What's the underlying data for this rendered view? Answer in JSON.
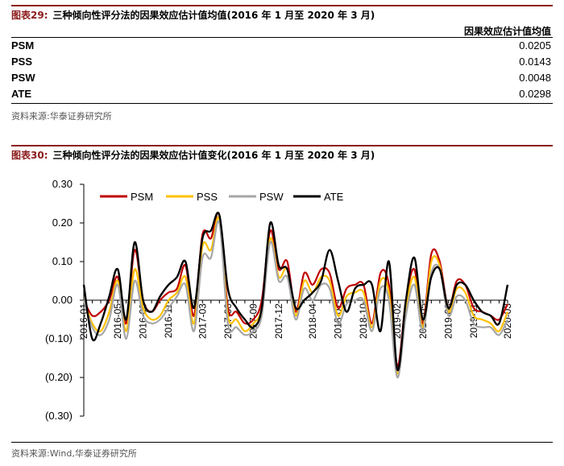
{
  "table": {
    "num": "图表29:",
    "title": "三种倾向性评分法的因果效应估计值均值(2016 年 1 月至 2020 年 3 月)",
    "column_header": "因果效应估计值均值",
    "rows": [
      {
        "label": "PSM",
        "value": "0.0205"
      },
      {
        "label": "PSS",
        "value": "0.0143"
      },
      {
        "label": "PSW",
        "value": "0.0048"
      },
      {
        "label": "ATE",
        "value": "0.0298"
      }
    ],
    "source": "资料来源:华泰证券研究所"
  },
  "chart": {
    "num": "图表30:",
    "title": "三种倾向性评分法的因果效应估计值变化(2016 年 1 月至 2020 年 3 月)",
    "source": "资料来源:Wind,华泰证券研究所"
  },
  "chart_data": {
    "type": "line",
    "title": "三种倾向性评分法的因果效应估计值变化(2016 年 1 月至 2020 年 3 月)",
    "x": [
      "2016-01",
      "2016-02",
      "2016-03",
      "2016-04",
      "2016-05",
      "2016-06",
      "2016-07",
      "2016-08",
      "2016-09",
      "2016-10",
      "2016-11",
      "2016-12",
      "2017-01",
      "2017-02",
      "2017-03",
      "2017-04",
      "2017-05",
      "2017-06",
      "2017-07",
      "2017-08",
      "2017-09",
      "2017-10",
      "2017-11",
      "2017-12",
      "2018-01",
      "2018-02",
      "2018-03",
      "2018-04",
      "2018-05",
      "2018-06",
      "2018-07",
      "2018-08",
      "2018-09",
      "2018-10",
      "2018-11",
      "2018-12",
      "2019-01",
      "2019-02",
      "2019-03",
      "2019-04",
      "2019-05",
      "2019-06",
      "2019-07",
      "2019-08",
      "2019-09",
      "2019-10",
      "2019-11",
      "2019-12",
      "2020-01",
      "2020-02",
      "2020-03"
    ],
    "x_tick_labels": [
      "2016-01",
      "2016-05",
      "2016-08",
      "2016-11",
      "2017-03",
      "2017-06",
      "2017-09",
      "2017-12",
      "2018-04",
      "2018-07",
      "2018-10",
      "2019-02",
      "2019-05",
      "2019-08",
      "2019-11",
      "2020-03"
    ],
    "x_tick_indices": [
      0,
      4,
      7,
      10,
      14,
      17,
      20,
      23,
      27,
      30,
      33,
      37,
      40,
      43,
      46,
      50
    ],
    "y_tick_labels": [
      "0.30",
      "0.20",
      "0.10",
      "0.00",
      "(0.10)",
      "(0.20)",
      "(0.30)"
    ],
    "y_tick_values": [
      0.3,
      0.2,
      0.1,
      0.0,
      -0.1,
      -0.2,
      -0.3
    ],
    "ylim": [
      -0.3,
      0.3
    ],
    "grid": false,
    "legend_position": "top-left",
    "series": [
      {
        "name": "PSM",
        "color": "#c00000",
        "width": 2.2,
        "values": [
          0.0,
          -0.04,
          -0.03,
          0.0,
          0.06,
          -0.06,
          0.13,
          0.0,
          -0.03,
          0.0,
          0.02,
          0.03,
          0.09,
          -0.04,
          0.17,
          0.16,
          0.22,
          -0.02,
          -0.03,
          -0.06,
          -0.05,
          0.0,
          0.18,
          0.08,
          0.1,
          -0.03,
          0.07,
          0.04,
          0.08,
          0.07,
          -0.02,
          0.03,
          0.04,
          0.04,
          -0.06,
          0.07,
          0.04,
          -0.17,
          0.0,
          0.08,
          -0.06,
          0.12,
          0.1,
          -0.02,
          0.05,
          0.04,
          -0.02,
          -0.03,
          -0.04,
          -0.05,
          -0.01
        ]
      },
      {
        "name": "PSS",
        "color": "#ffc000",
        "width": 2.2,
        "values": [
          0.0,
          -0.06,
          -0.08,
          -0.03,
          0.05,
          -0.08,
          0.08,
          -0.02,
          -0.05,
          -0.04,
          0.0,
          0.02,
          0.06,
          -0.06,
          0.14,
          0.13,
          0.21,
          -0.04,
          -0.05,
          -0.08,
          -0.06,
          -0.02,
          0.16,
          0.06,
          0.08,
          -0.04,
          0.05,
          0.02,
          0.06,
          0.05,
          -0.04,
          0.01,
          0.02,
          0.02,
          -0.07,
          0.05,
          0.02,
          -0.19,
          -0.02,
          0.06,
          -0.07,
          0.1,
          0.09,
          -0.03,
          0.03,
          0.02,
          -0.04,
          -0.05,
          -0.06,
          -0.08,
          -0.03
        ]
      },
      {
        "name": "PSW",
        "color": "#a6a6a6",
        "width": 2.2,
        "values": [
          0.0,
          -0.07,
          -0.09,
          -0.05,
          0.04,
          -0.1,
          0.05,
          -0.04,
          -0.06,
          -0.05,
          -0.02,
          0.01,
          0.04,
          -0.08,
          0.11,
          0.11,
          0.2,
          -0.06,
          -0.07,
          -0.09,
          -0.08,
          -0.04,
          0.15,
          0.05,
          0.06,
          -0.05,
          0.03,
          0.0,
          0.04,
          0.03,
          -0.06,
          -0.01,
          0.0,
          0.0,
          -0.08,
          0.03,
          0.0,
          -0.2,
          -0.04,
          0.04,
          -0.08,
          0.07,
          0.08,
          -0.04,
          0.01,
          0.0,
          -0.06,
          -0.07,
          -0.07,
          -0.09,
          -0.05
        ]
      },
      {
        "name": "ATE",
        "color": "#000000",
        "width": 2.4,
        "values": [
          0.04,
          -0.1,
          -0.06,
          0.01,
          0.08,
          -0.05,
          0.15,
          0.0,
          -0.03,
          0.01,
          0.04,
          0.06,
          0.1,
          -0.02,
          0.16,
          0.18,
          0.22,
          0.03,
          -0.02,
          -0.05,
          -0.07,
          -0.02,
          0.2,
          0.09,
          0.08,
          -0.02,
          0.0,
          0.02,
          0.05,
          0.13,
          0.05,
          -0.03,
          0.03,
          0.04,
          0.04,
          -0.08,
          0.1,
          -0.18,
          0.0,
          0.11,
          -0.05,
          0.06,
          0.08,
          -0.02,
          0.04,
          0.04,
          0.0,
          -0.03,
          -0.04,
          -0.06,
          0.04
        ]
      }
    ]
  }
}
